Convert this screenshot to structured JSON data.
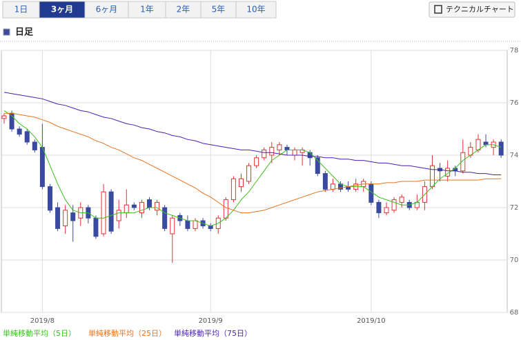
{
  "tabs": [
    "1日",
    "3ヶ月",
    "6ヶ月",
    "1年",
    "2年",
    "5年",
    "10年"
  ],
  "selected_tab": 1,
  "button": "テクニカルチャート",
  "section_title": "日足",
  "chart_data": {
    "type": "candlestick",
    "categories": [
      null,
      null,
      null,
      null,
      null,
      "2019/8",
      null,
      null,
      null,
      null,
      null,
      null,
      null,
      null,
      null,
      null,
      null,
      null,
      null,
      null,
      null,
      null,
      null,
      null,
      null,
      null,
      null,
      "2019/9",
      null,
      null,
      null,
      null,
      null,
      null,
      null,
      null,
      null,
      null,
      null,
      null,
      null,
      null,
      null,
      null,
      null,
      null,
      null,
      null,
      "2019/10",
      null,
      null,
      null,
      null,
      null,
      null,
      null,
      null,
      null,
      null,
      null,
      null,
      null,
      null,
      null,
      null,
      null
    ],
    "open": [
      75.4,
      75.6,
      75.0,
      74.9,
      74.5,
      74.3,
      72.8,
      72.0,
      71.3,
      71.8,
      71.6,
      72.0,
      71.6,
      71.0,
      72.6,
      71.5,
      71.8,
      72.1,
      71.8,
      72.3,
      71.9,
      72.0,
      71.0,
      71.7,
      71.5,
      71.2,
      71.5,
      71.3,
      71.2,
      71.6,
      72.3,
      72.8,
      73.0,
      73.6,
      73.9,
      74.0,
      74.2,
      74.3,
      74.0,
      74.1,
      74.1,
      73.9,
      73.3,
      72.7,
      72.9,
      72.8,
      72.7,
      72.8,
      72.9,
      72.2,
      71.8,
      71.9,
      72.2,
      72.2,
      72.0,
      72.2,
      72.8,
      73.5,
      73.2,
      73.5,
      73.4,
      74.0,
      74.2,
      74.5,
      74.3,
      74.5
    ],
    "high": [
      75.6,
      75.7,
      75.1,
      75.0,
      74.6,
      75.2,
      72.9,
      72.2,
      72.1,
      72.1,
      72.2,
      72.1,
      71.7,
      72.9,
      72.7,
      72.3,
      72.7,
      72.2,
      72.3,
      72.4,
      72.3,
      72.1,
      71.7,
      71.8,
      71.7,
      71.6,
      71.6,
      71.4,
      71.7,
      72.4,
      73.2,
      73.3,
      73.7,
      74.0,
      74.3,
      74.5,
      74.5,
      74.4,
      74.3,
      74.3,
      74.2,
      74.0,
      73.4,
      73.1,
      73.0,
      73.0,
      73.1,
      73.1,
      73.0,
      72.3,
      72.2,
      72.4,
      72.5,
      72.3,
      72.5,
      73.0,
      74.0,
      73.7,
      73.8,
      73.6,
      74.6,
      74.5,
      74.8,
      74.8,
      74.6,
      74.6
    ],
    "low": [
      75.2,
      74.9,
      74.7,
      74.4,
      74.1,
      72.7,
      71.8,
      71.1,
      71.0,
      70.7,
      71.3,
      71.4,
      70.8,
      70.9,
      71.0,
      71.2,
      71.6,
      71.9,
      71.6,
      71.9,
      71.7,
      71.1,
      69.9,
      71.3,
      71.1,
      71.1,
      71.2,
      71.1,
      71.0,
      71.5,
      72.2,
      72.6,
      72.9,
      73.5,
      73.8,
      73.7,
      74.0,
      74.0,
      73.8,
      73.6,
      73.6,
      73.2,
      72.6,
      72.6,
      72.6,
      72.6,
      72.6,
      72.6,
      72.1,
      71.6,
      71.7,
      71.8,
      72.0,
      71.9,
      71.9,
      71.9,
      72.7,
      73.0,
      73.0,
      73.2,
      73.3,
      73.9,
      74.1,
      74.3,
      74.0,
      73.9
    ],
    "close": [
      75.5,
      75.0,
      74.8,
      74.5,
      74.2,
      72.8,
      71.9,
      71.2,
      71.9,
      71.5,
      72.0,
      71.6,
      70.9,
      72.6,
      71.1,
      71.9,
      72.1,
      72.0,
      72.2,
      72.0,
      72.2,
      71.2,
      71.6,
      71.5,
      71.2,
      71.5,
      71.3,
      71.2,
      71.6,
      72.3,
      73.1,
      73.1,
      73.6,
      73.9,
      74.2,
      74.3,
      74.4,
      74.2,
      74.2,
      74.2,
      73.9,
      73.3,
      72.7,
      72.9,
      72.7,
      72.7,
      72.9,
      73.0,
      72.2,
      71.8,
      72.0,
      72.3,
      72.4,
      72.0,
      72.2,
      72.8,
      73.6,
      73.4,
      73.5,
      73.4,
      74.1,
      74.3,
      74.6,
      74.4,
      74.5,
      74.0
    ],
    "up_color": "#e0312f",
    "down_color": "#3a4aa0",
    "series": [
      {
        "name": "単純移動平均（5日）",
        "color": "#3cbf1f",
        "values": [
          75.7,
          75.5,
          75.2,
          75.0,
          74.7,
          74.3,
          73.6,
          72.9,
          72.3,
          71.9,
          71.8,
          71.8,
          71.6,
          71.6,
          71.7,
          71.8,
          71.8,
          71.8,
          71.9,
          72.0,
          72.0,
          71.8,
          71.7,
          71.6,
          71.5,
          71.5,
          71.4,
          71.3,
          71.4,
          71.6,
          71.9,
          72.3,
          72.6,
          73.0,
          73.4,
          73.8,
          74.0,
          74.2,
          74.2,
          74.2,
          74.1,
          73.8,
          73.5,
          73.2,
          72.9,
          72.8,
          72.8,
          72.8,
          72.6,
          72.4,
          72.3,
          72.2,
          72.1,
          72.1,
          72.2,
          72.5,
          72.8,
          73.1,
          73.3,
          73.5,
          73.8,
          74.0,
          74.2,
          74.4,
          74.4,
          74.3
        ]
      },
      {
        "name": "単純移動平均（25日）",
        "color": "#e8741e",
        "values": [
          75.6,
          75.6,
          75.55,
          75.5,
          75.45,
          75.35,
          75.25,
          75.1,
          75.0,
          74.9,
          74.8,
          74.7,
          74.55,
          74.45,
          74.3,
          74.2,
          74.05,
          73.9,
          73.8,
          73.65,
          73.5,
          73.35,
          73.2,
          73.05,
          72.9,
          72.75,
          72.55,
          72.4,
          72.2,
          72.0,
          71.9,
          71.8,
          71.8,
          71.85,
          71.9,
          72.0,
          72.1,
          72.2,
          72.3,
          72.4,
          72.5,
          72.6,
          72.65,
          72.7,
          72.75,
          72.8,
          72.85,
          72.9,
          72.9,
          72.9,
          72.95,
          72.95,
          73.0,
          73.0,
          73.0,
          73.05,
          73.05,
          73.05,
          73.05,
          73.05,
          73.05,
          73.05,
          73.05,
          73.1,
          73.1,
          73.1
        ]
      },
      {
        "name": "単純移動平均（75日）",
        "color": "#4a1fb0",
        "values": [
          76.4,
          76.35,
          76.3,
          76.25,
          76.2,
          76.15,
          76.05,
          75.95,
          75.9,
          75.8,
          75.7,
          75.65,
          75.55,
          75.45,
          75.4,
          75.3,
          75.2,
          75.15,
          75.05,
          75.0,
          74.9,
          74.85,
          74.75,
          74.7,
          74.6,
          74.55,
          74.45,
          74.4,
          74.35,
          74.3,
          74.25,
          74.2,
          74.2,
          74.15,
          74.1,
          74.1,
          74.05,
          74.0,
          74.0,
          74.0,
          73.95,
          73.95,
          73.9,
          73.9,
          73.85,
          73.85,
          73.8,
          73.8,
          73.75,
          73.7,
          73.7,
          73.65,
          73.6,
          73.6,
          73.55,
          73.5,
          73.45,
          73.45,
          73.4,
          73.4,
          73.35,
          73.35,
          73.3,
          73.3,
          73.25,
          73.25
        ]
      }
    ],
    "ylim": [
      68,
      78
    ],
    "yticks": [
      68,
      70,
      72,
      74,
      76,
      78
    ],
    "grid": true
  }
}
